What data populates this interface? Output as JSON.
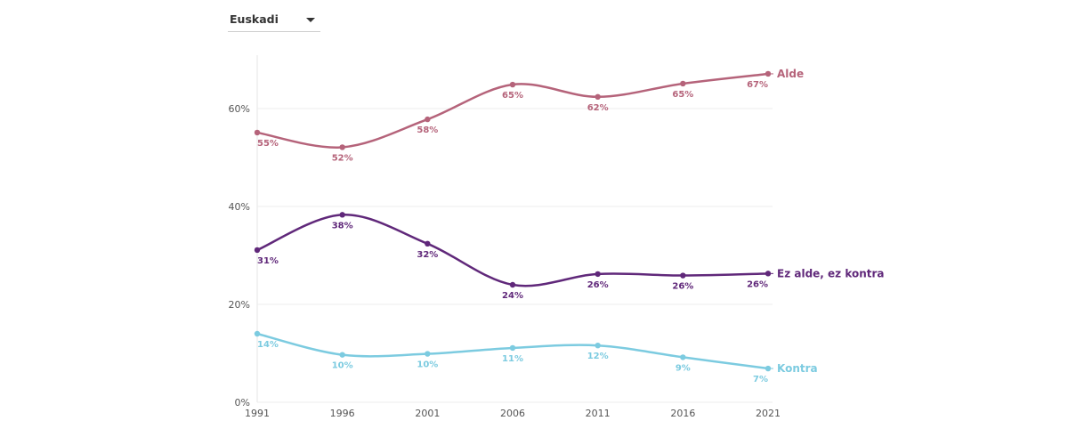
{
  "selector": {
    "selected": "Euskadi"
  },
  "chart_data": {
    "type": "line",
    "title": "",
    "xlabel": "",
    "ylabel": "",
    "x": [
      "1991",
      "1996",
      "2001",
      "2006",
      "2011",
      "2016",
      "2021"
    ],
    "ylim": [
      0,
      70
    ],
    "yticks": [
      0,
      20,
      40,
      60
    ],
    "ytick_labels": [
      "0%",
      "20%",
      "40%",
      "60%"
    ],
    "grid": true,
    "legend": "inline-right",
    "series": [
      {
        "name": "Alde",
        "color": "#b5637a",
        "values": [
          55,
          52,
          58,
          65,
          62,
          65,
          67
        ],
        "plot_values": [
          55.1,
          52.1,
          57.8,
          64.9,
          62.4,
          65.1,
          67.1
        ],
        "labels": [
          "55%",
          "52%",
          "58%",
          "65%",
          "62%",
          "65%",
          "67%"
        ]
      },
      {
        "name": "Ez alde, ez kontra",
        "color": "#60287a",
        "values": [
          31,
          38,
          32,
          24,
          26,
          26,
          26
        ],
        "plot_values": [
          31.1,
          38.3,
          32.4,
          24.0,
          26.2,
          25.9,
          26.3
        ],
        "labels": [
          "31%",
          "38%",
          "32%",
          "24%",
          "26%",
          "26%",
          "26%"
        ]
      },
      {
        "name": "Kontra",
        "color": "#7ccbe0",
        "values": [
          14,
          10,
          10,
          11,
          12,
          9,
          7
        ],
        "plot_values": [
          14.0,
          9.7,
          9.9,
          11.1,
          11.6,
          9.2,
          6.9
        ],
        "labels": [
          "14%",
          "10%",
          "10%",
          "11%",
          "12%",
          "9%",
          "7%"
        ]
      }
    ]
  }
}
